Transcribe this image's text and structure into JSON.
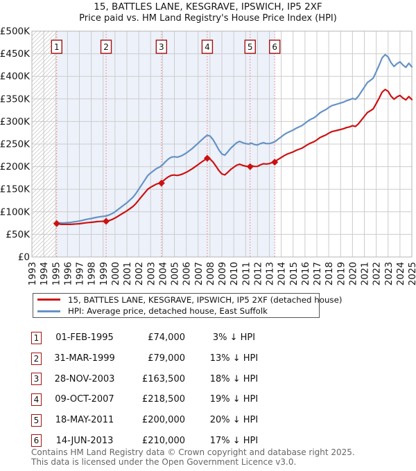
{
  "page": {
    "title": "15, BATTLES LANE, KESGRAVE, IPSWICH, IP5 2XF",
    "subtitle": "Price paid vs. HM Land Registry's House Price Index (HPI)"
  },
  "legend": {
    "items": [
      {
        "label": "15, BATTLES LANE, KESGRAVE, IPSWICH, IP5 2XF (detached house)",
        "color": "#cc1111"
      },
      {
        "label": "HPI: Average price, detached house, East Suffolk",
        "color": "#6492c6"
      }
    ]
  },
  "sales": [
    {
      "n": "1",
      "date": "01-FEB-1995",
      "price": "£74,000",
      "vs_hpi": "3% ↓ HPI",
      "x": 1995.09,
      "value_thousands": 74
    },
    {
      "n": "2",
      "date": "31-MAR-1999",
      "price": "£79,000",
      "vs_hpi": "13% ↓ HPI",
      "x": 1999.25,
      "value_thousands": 79
    },
    {
      "n": "3",
      "date": "28-NOV-2003",
      "price": "£163,500",
      "vs_hpi": "18% ↓ HPI",
      "x": 2003.91,
      "value_thousands": 163.5
    },
    {
      "n": "4",
      "date": "09-OCT-2007",
      "price": "£218,500",
      "vs_hpi": "19% ↓ HPI",
      "x": 2007.77,
      "value_thousands": 218.5
    },
    {
      "n": "5",
      "date": "18-MAY-2011",
      "price": "£200,000",
      "vs_hpi": "20% ↓ HPI",
      "x": 2011.38,
      "value_thousands": 200
    },
    {
      "n": "6",
      "date": "14-JUN-2013",
      "price": "£210,000",
      "vs_hpi": "17% ↓ HPI",
      "x": 2013.45,
      "value_thousands": 210
    }
  ],
  "footer": {
    "line1": "Contains HM Land Registry data © Crown copyright and database right 2025.",
    "line2": "This data is licensed under the Open Government Licence v3.0."
  },
  "chart_data": {
    "type": "line",
    "title": "15, BATTLES LANE, KESGRAVE, IPSWICH, IP5 2XF",
    "subtitle": "Price paid vs. HM Land Registry's House Price Index (HPI)",
    "xlabel": "",
    "ylabel": "",
    "currency": "GBP",
    "units": "thousands of pounds",
    "xlim": [
      1993,
      2025
    ],
    "ylim_thousands": [
      0,
      500
    ],
    "grid": true,
    "legend_position": "below-chart",
    "x_ticks": [
      1993,
      1994,
      1995,
      1996,
      1997,
      1998,
      1999,
      2000,
      2001,
      2002,
      2003,
      2004,
      2005,
      2006,
      2007,
      2008,
      2009,
      2010,
      2011,
      2012,
      2013,
      2014,
      2015,
      2016,
      2017,
      2018,
      2019,
      2020,
      2021,
      2022,
      2023,
      2024,
      2025
    ],
    "y_ticks": {
      "values_thousands": [
        0,
        50,
        100,
        150,
        200,
        250,
        300,
        350,
        400,
        450,
        500
      ],
      "labels": [
        "£0",
        "£50K",
        "£100K",
        "£150K",
        "£200K",
        "£250K",
        "£300K",
        "£350K",
        "£400K",
        "£450K",
        "£500K"
      ]
    },
    "hatched_span_x": [
      1993,
      1995.09
    ],
    "shaded_span_x": [
      1995.09,
      2013.45
    ],
    "colors": {
      "price_paid": "#cc1111",
      "hpi": "#6492c6",
      "sale_dash": "#e97777",
      "badge_border": "#a11111",
      "grid": "#cccccc",
      "frame": "#b5b5b5",
      "shade": "#edf1fa",
      "hatch": "#c9c9c9"
    },
    "series": [
      {
        "name": "15, BATTLES LANE, KESGRAVE, IPSWICH, IP5 2XF (detached house)",
        "color": "#cc1111",
        "x": [
          1995.09,
          1995.25,
          1995.5,
          1995.75,
          1996,
          1996.25,
          1996.5,
          1996.75,
          1997,
          1997.25,
          1997.5,
          1997.75,
          1998,
          1998.25,
          1998.5,
          1998.75,
          1999,
          1999.25,
          1999.5,
          1999.75,
          2000,
          2000.25,
          2000.5,
          2000.75,
          2001,
          2001.25,
          2001.5,
          2001.75,
          2002,
          2002.25,
          2002.5,
          2002.75,
          2003,
          2003.25,
          2003.5,
          2003.75,
          2004,
          2004.25,
          2004.5,
          2004.75,
          2005,
          2005.25,
          2005.5,
          2005.75,
          2006,
          2006.25,
          2006.5,
          2006.75,
          2007,
          2007.25,
          2007.5,
          2007.75,
          2008,
          2008.25,
          2008.5,
          2008.75,
          2009,
          2009.25,
          2009.5,
          2009.75,
          2010,
          2010.25,
          2010.5,
          2010.75,
          2011,
          2011.25,
          2011.5,
          2011.75,
          2012,
          2012.25,
          2012.5,
          2012.75,
          2013,
          2013.25,
          2013.5,
          2013.75,
          2014,
          2014.25,
          2014.5,
          2014.75,
          2015,
          2015.25,
          2015.5,
          2015.75,
          2016,
          2016.25,
          2016.5,
          2016.75,
          2017,
          2017.25,
          2017.5,
          2017.75,
          2018,
          2018.25,
          2018.5,
          2018.75,
          2019,
          2019.25,
          2019.5,
          2019.75,
          2020,
          2020.25,
          2020.5,
          2020.75,
          2021,
          2021.25,
          2021.5,
          2021.75,
          2022,
          2022.25,
          2022.5,
          2022.75,
          2023,
          2023.25,
          2023.5,
          2023.75,
          2024,
          2024.25,
          2024.5,
          2024.75,
          2025
        ],
        "y_thousands": [
          74,
          73.1,
          72.3,
          72.2,
          72.2,
          72.2,
          72.7,
          73.2,
          73.6,
          74.5,
          75.4,
          76.3,
          76.7,
          77.5,
          78.3,
          78.7,
          79,
          79,
          80.6,
          83,
          86.2,
          90.2,
          94.2,
          98.2,
          102.1,
          106.9,
          111.6,
          118,
          126,
          134,
          142,
          149.8,
          154.4,
          158,
          161.5,
          163.3,
          167.2,
          172.9,
          177.6,
          180.8,
          181.4,
          180.5,
          182,
          184.3,
          187.4,
          191.3,
          195.2,
          199.9,
          204.6,
          209.3,
          214,
          218.4,
          217,
          210.3,
          201.2,
          191.4,
          183.9,
          181.8,
          187.6,
          193.9,
          198.6,
          203.2,
          205.4,
          202.9,
          201.1,
          200.1,
          202,
          200.5,
          200.6,
          204,
          206.5,
          205.8,
          206.7,
          209.3,
          212,
          216.1,
          220.2,
          224.4,
          227.7,
          230.2,
          232.7,
          236,
          238.5,
          240.9,
          245.1,
          249.2,
          252.5,
          255,
          259.2,
          264.1,
          267.4,
          269.9,
          274.1,
          277.4,
          279,
          280.7,
          282.3,
          284,
          286.5,
          288.1,
          290.6,
          289,
          294.8,
          303,
          311.3,
          319.6,
          323.7,
          327.9,
          339.5,
          351.9,
          365.2,
          370.9,
          366.8,
          356,
          349.4,
          354.4,
          357.7,
          351.9,
          347.8,
          355.2,
          348.6
        ]
      },
      {
        "name": "HPI: Average price, detached house, East Suffolk",
        "color": "#6492c6",
        "x": [
          1995.09,
          1995.25,
          1995.5,
          1995.75,
          1996,
          1996.25,
          1996.5,
          1996.75,
          1997,
          1997.25,
          1997.5,
          1997.75,
          1998,
          1998.25,
          1998.5,
          1998.75,
          1999,
          1999.25,
          1999.5,
          1999.75,
          2000,
          2000.25,
          2000.5,
          2000.75,
          2001,
          2001.25,
          2001.5,
          2001.75,
          2002,
          2002.25,
          2002.5,
          2002.75,
          2003,
          2003.25,
          2003.5,
          2003.75,
          2004,
          2004.25,
          2004.5,
          2004.75,
          2005,
          2005.25,
          2005.5,
          2005.75,
          2006,
          2006.25,
          2006.5,
          2006.75,
          2007,
          2007.25,
          2007.5,
          2007.75,
          2008,
          2008.25,
          2008.5,
          2008.75,
          2009,
          2009.25,
          2009.5,
          2009.75,
          2010,
          2010.25,
          2010.5,
          2010.75,
          2011,
          2011.25,
          2011.5,
          2011.75,
          2012,
          2012.25,
          2012.5,
          2012.75,
          2013,
          2013.25,
          2013.5,
          2013.75,
          2014,
          2014.25,
          2014.5,
          2014.75,
          2015,
          2015.25,
          2015.5,
          2015.75,
          2016,
          2016.25,
          2016.5,
          2016.75,
          2017,
          2017.25,
          2017.5,
          2017.75,
          2018,
          2018.25,
          2018.5,
          2018.75,
          2019,
          2019.25,
          2019.5,
          2019.75,
          2020,
          2020.25,
          2020.5,
          2020.75,
          2021,
          2021.25,
          2021.5,
          2021.75,
          2022,
          2022.25,
          2022.5,
          2022.75,
          2023,
          2023.25,
          2023.5,
          2023.75,
          2024,
          2024.25,
          2024.5,
          2024.75,
          2025
        ],
        "y_thousands": [
          76.3,
          75.8,
          75.3,
          75.6,
          76.1,
          76.6,
          77.6,
          78.6,
          79.6,
          81,
          82.6,
          84,
          85.1,
          86.6,
          88,
          89.1,
          90,
          90.8,
          93,
          96,
          100,
          105,
          110,
          115,
          120,
          126,
          132,
          140,
          150,
          160,
          170,
          180,
          186,
          191,
          196,
          199,
          204,
          211,
          217,
          221,
          222,
          221,
          223,
          226,
          230,
          235,
          240,
          246,
          252,
          258,
          264,
          269.5,
          268,
          260,
          249,
          237,
          228,
          225.5,
          233,
          241,
          247,
          253,
          256,
          253,
          251,
          250,
          252,
          249,
          248,
          251,
          253,
          251,
          251,
          253,
          256,
          261,
          266,
          271,
          275,
          278,
          281,
          285,
          288,
          291,
          296,
          301,
          305,
          308,
          313,
          319,
          323,
          326,
          331,
          335,
          337,
          339,
          341,
          343,
          346,
          348,
          351,
          349,
          356,
          366,
          376,
          386,
          391,
          396,
          410,
          425,
          441,
          448,
          443,
          430,
          422,
          428,
          432,
          425,
          420,
          429,
          421
        ]
      }
    ],
    "sale_markers": [
      {
        "n": 1,
        "x": 1995.09,
        "y_thousands": 74
      },
      {
        "n": 2,
        "x": 1999.25,
        "y_thousands": 79
      },
      {
        "n": 3,
        "x": 2003.91,
        "y_thousands": 163.5
      },
      {
        "n": 4,
        "x": 2007.77,
        "y_thousands": 218.5
      },
      {
        "n": 5,
        "x": 2011.38,
        "y_thousands": 200
      },
      {
        "n": 6,
        "x": 2013.45,
        "y_thousands": 210
      }
    ]
  }
}
